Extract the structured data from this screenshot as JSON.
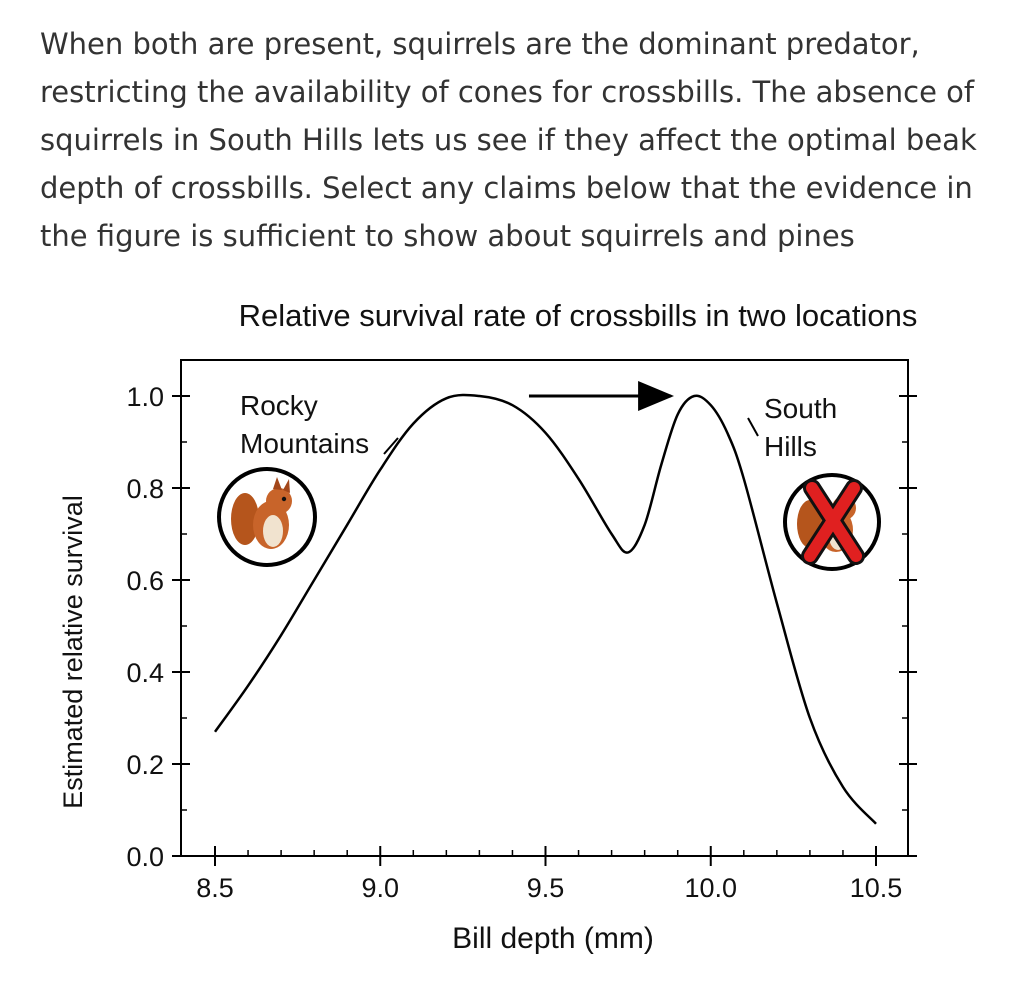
{
  "question": {
    "lines": [
      "When both are present, squirrels are the dominant predator,",
      "restricting the availability of cones for crossbills. The absence of",
      "squirrels in South Hills lets us see if they affect the optimal beak",
      "depth of crossbills. Select any claims below that the evidence in",
      "the figure is sufficient to show about squirrels and pines"
    ]
  },
  "chart_data": {
    "type": "line",
    "title": "Relative survival rate of crossbills in two locations",
    "xlabel": "Bill depth (mm)",
    "ylabel": "Estimated relative survival",
    "xlim": [
      8.5,
      10.5
    ],
    "ylim": [
      0.0,
      1.0
    ],
    "xticks": [
      "8.5",
      "9.0",
      "9.5",
      "10.0",
      "10.5"
    ],
    "yticks": [
      "0.0",
      "0.2",
      "0.4",
      "0.6",
      "0.8",
      "1.0"
    ],
    "grid": false,
    "series": [
      {
        "x": [
          8.5,
          8.6,
          8.7,
          8.8,
          8.9,
          9.0,
          9.1,
          9.2,
          9.3,
          9.4,
          9.5,
          9.6,
          9.7,
          9.75,
          9.8,
          9.85,
          9.9,
          9.95,
          10.0,
          10.05,
          10.1,
          10.2,
          10.3,
          10.4,
          10.5
        ],
        "y": [
          0.27,
          0.37,
          0.48,
          0.6,
          0.72,
          0.84,
          0.94,
          0.995,
          1.0,
          0.98,
          0.92,
          0.82,
          0.7,
          0.66,
          0.72,
          0.85,
          0.96,
          1.0,
          0.98,
          0.92,
          0.82,
          0.55,
          0.3,
          0.15,
          0.07
        ],
        "color": "#000000"
      }
    ],
    "annotations": {
      "rocky": {
        "line1": "Rocky",
        "line2": "Mountains"
      },
      "south": {
        "line1": "South",
        "line2": "Hills"
      },
      "arrow": {
        "from_x": 9.45,
        "to_x": 9.88,
        "y": 1.0
      }
    }
  }
}
